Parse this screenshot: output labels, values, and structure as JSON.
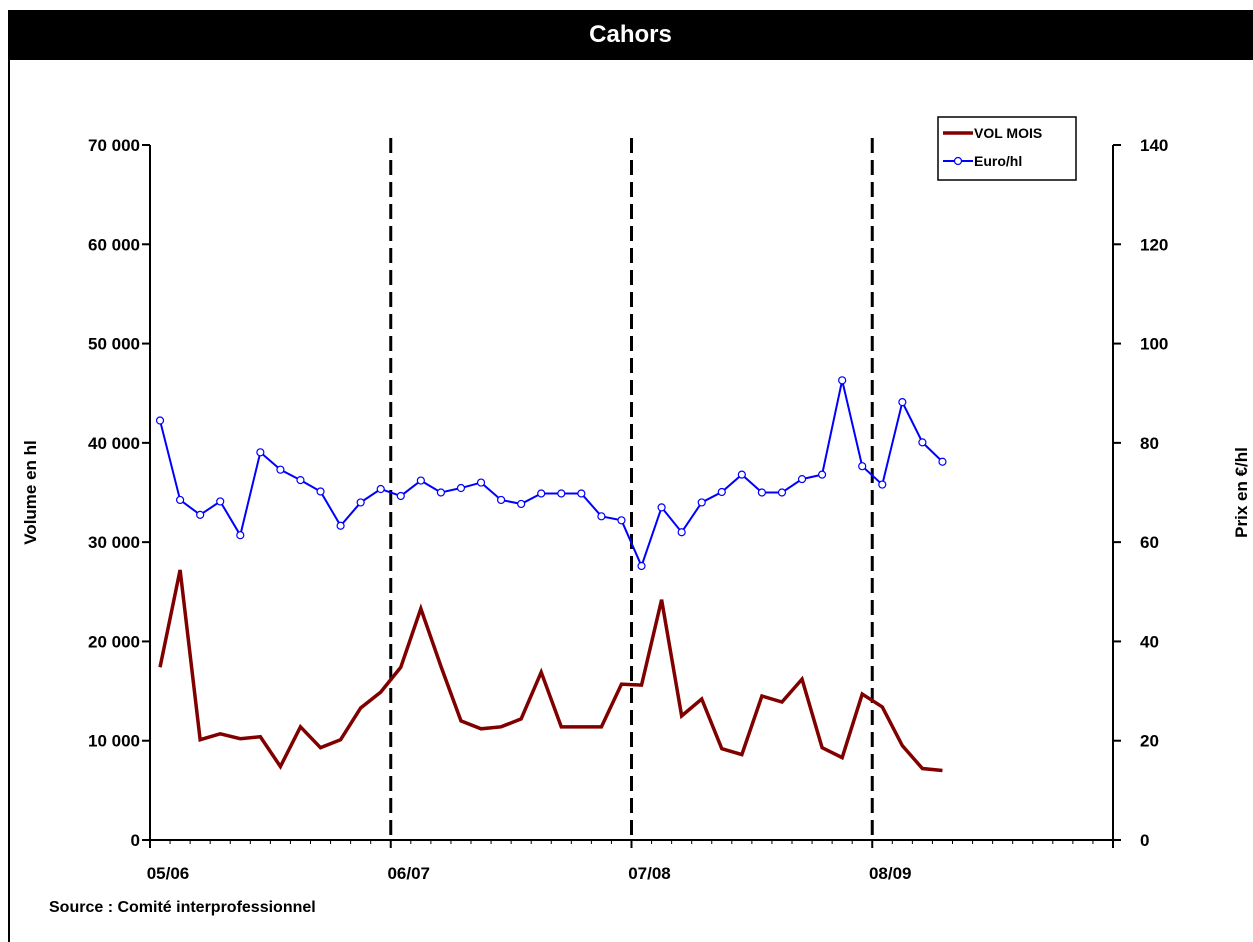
{
  "chart_data": {
    "type": "line",
    "title": "Cahors",
    "ylabel_left": "Volume en hl",
    "ylabel_right": "Prix en €/hl",
    "x_tick_labels": [
      "05/06",
      "06/07",
      "07/08",
      "08/09"
    ],
    "left_axis": {
      "min": 0,
      "max": 70000,
      "step": 10000,
      "tick_labels": [
        "0",
        "10 000",
        "20 000",
        "30 000",
        "40 000",
        "50 000",
        "60 000",
        "70 000"
      ]
    },
    "right_axis": {
      "min": 0,
      "max": 140,
      "step": 20,
      "tick_labels": [
        "0",
        "20",
        "40",
        "60",
        "80",
        "100",
        "120",
        "140"
      ]
    },
    "months_total": 48,
    "campaign_separators_at_month": [
      12,
      24,
      36
    ],
    "legend_position": "top-right",
    "series": [
      {
        "name": "VOL MOIS",
        "axis": "left",
        "color": "#800000",
        "marker": "none",
        "values": [
          17400,
          27200,
          10100,
          10700,
          10200,
          10400,
          7400,
          11400,
          9300,
          10100,
          13300,
          14900,
          17400,
          23300,
          17500,
          12000,
          11200,
          11400,
          12200,
          16900,
          11400,
          11400,
          11400,
          15700,
          15600,
          24200,
          12500,
          14200,
          9200,
          8600,
          14500,
          13900,
          16200,
          9300,
          8300,
          14700,
          13400,
          9500,
          7200,
          7000
        ]
      },
      {
        "name": "Euro/hl",
        "axis": "right",
        "color": "#0000ff",
        "marker": "circle",
        "values": [
          84.5,
          68.5,
          65.5,
          68.2,
          61.4,
          78.1,
          74.6,
          72.5,
          70.2,
          63.3,
          68,
          70.7,
          69.3,
          72.4,
          70,
          70.9,
          72,
          68.5,
          67.7,
          69.8,
          69.8,
          69.8,
          65.2,
          64.4,
          55.2,
          67,
          62,
          68,
          70.1,
          73.6,
          70,
          70,
          72.7,
          73.6,
          92.6,
          75.3,
          71.6,
          88.2,
          80.1,
          76.2
        ]
      }
    ]
  },
  "source_note": "Source : Comité interprofessionnel"
}
